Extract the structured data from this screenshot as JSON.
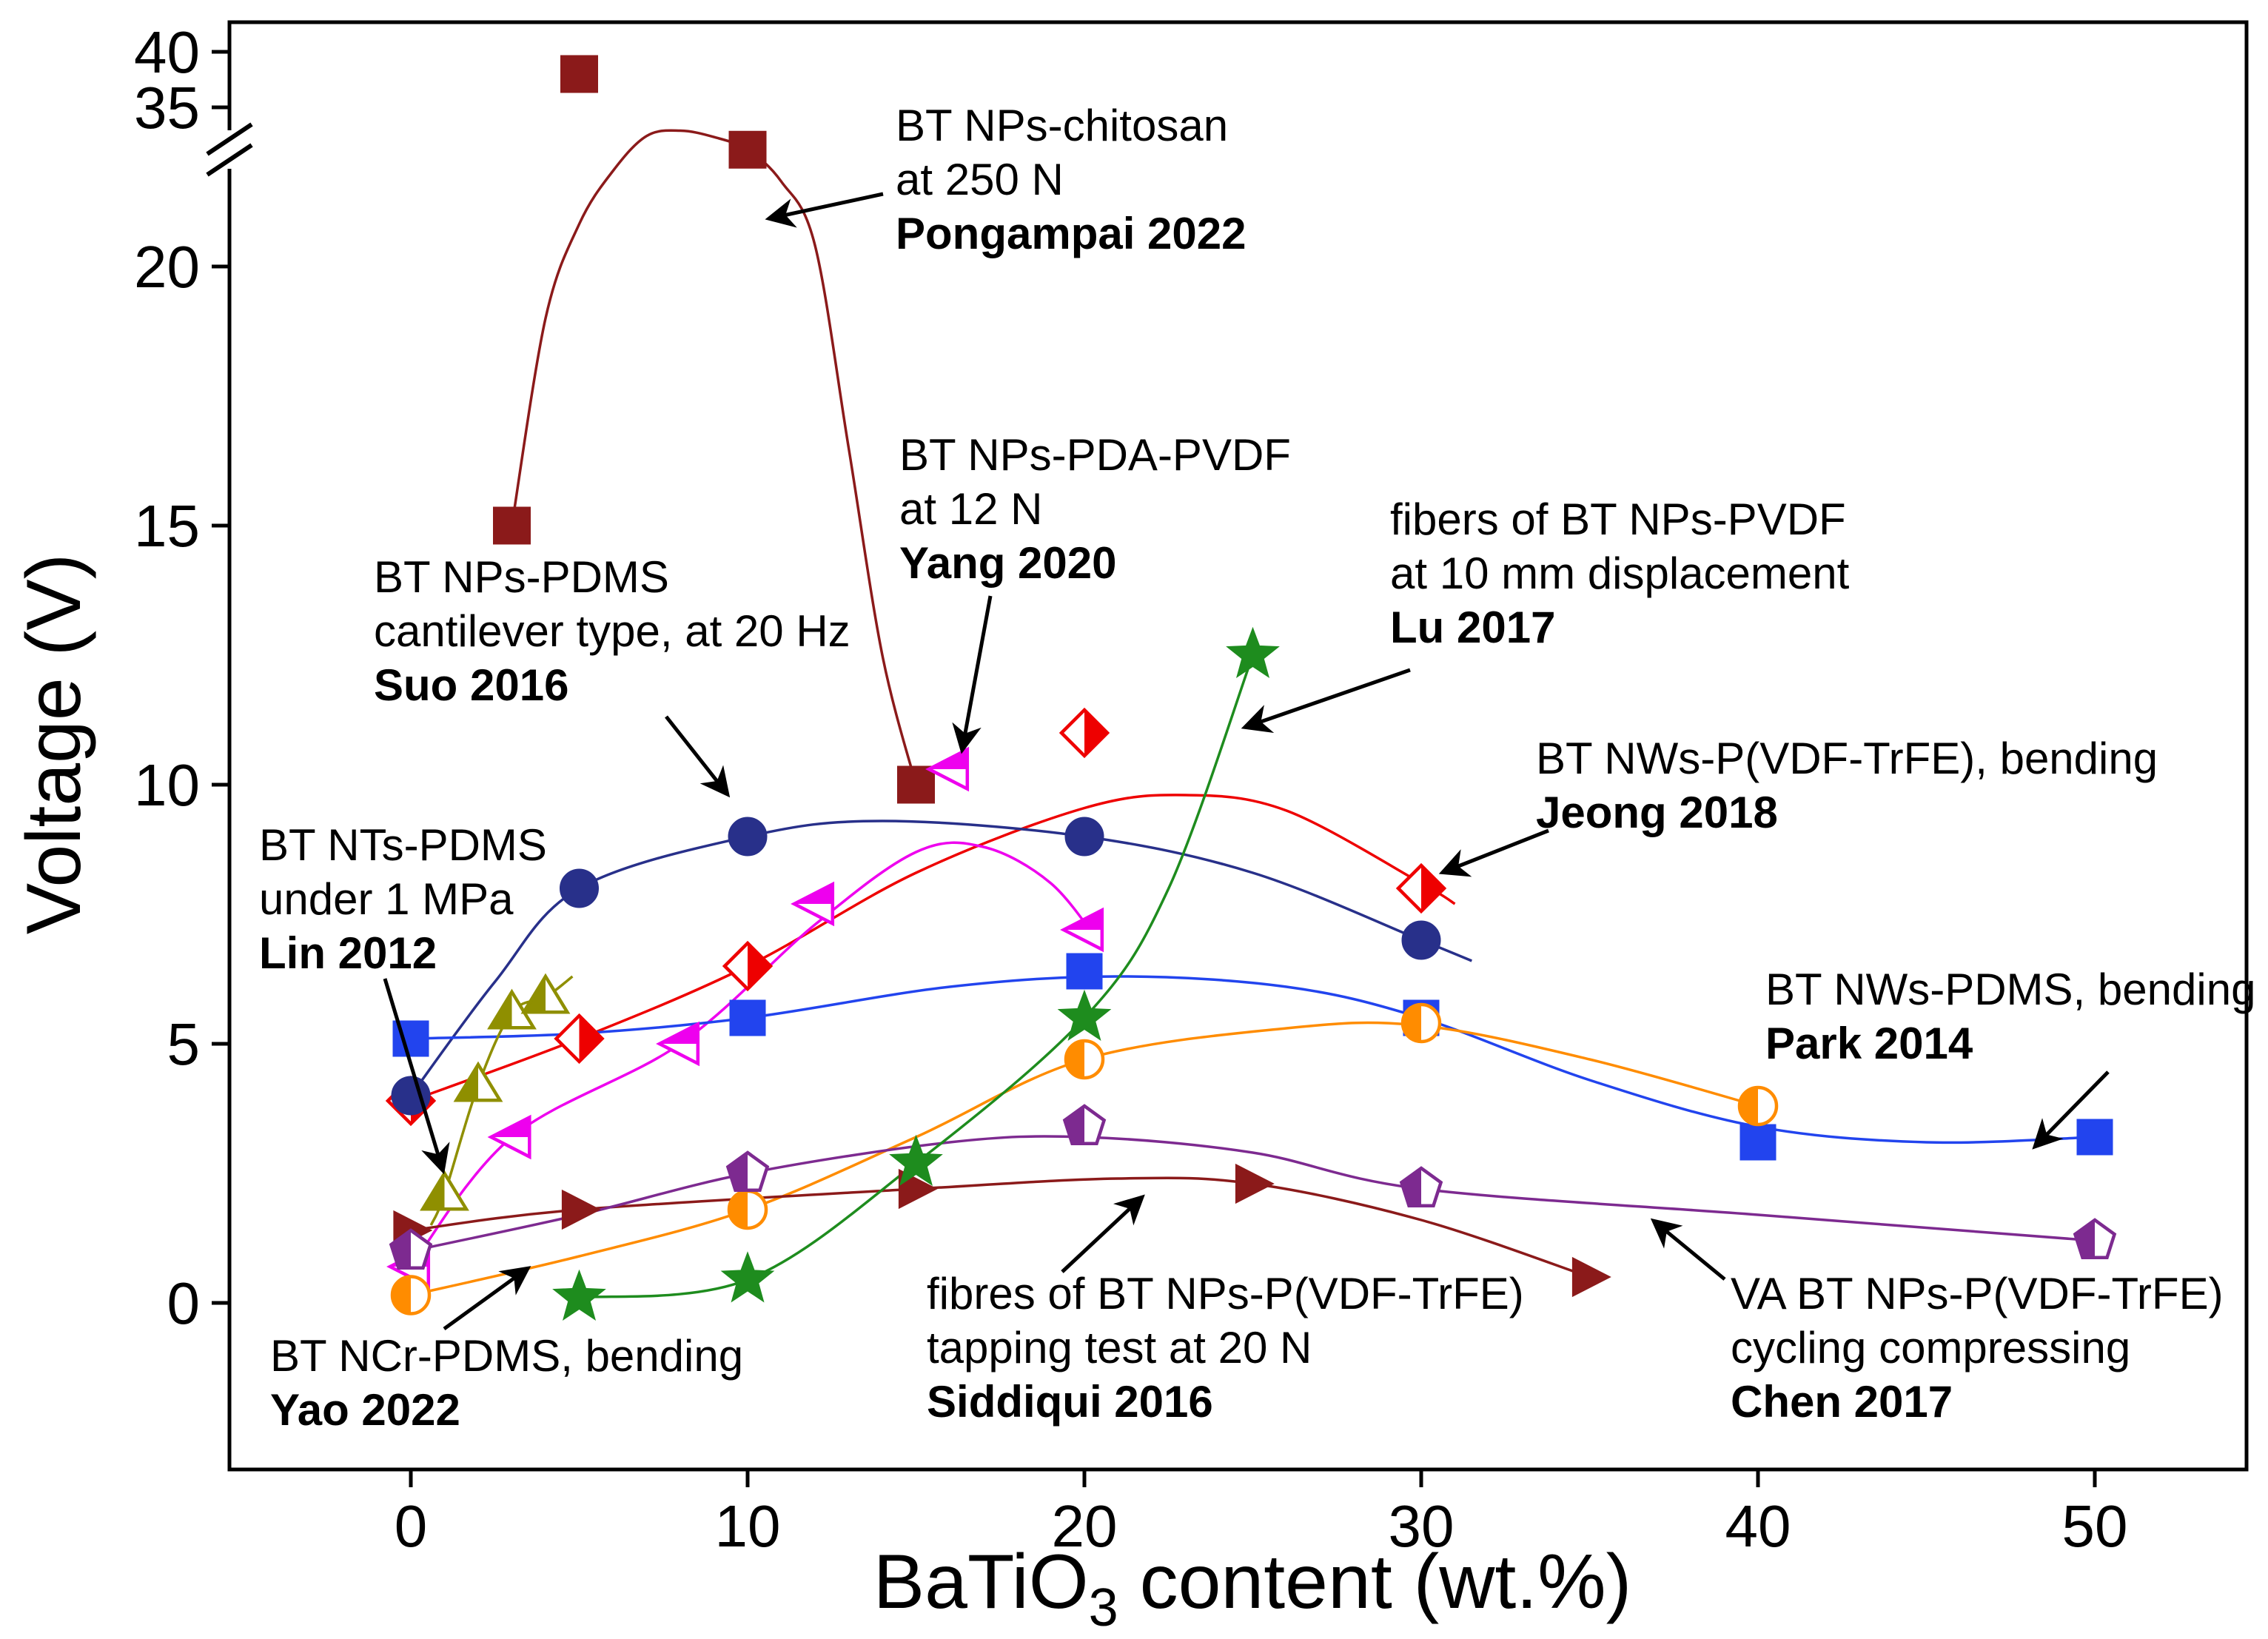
{
  "chart_data": {
    "type": "scatter",
    "title": "",
    "xlabel": {
      "pre": "BaTiO",
      "sub": "3",
      "post": " content (wt.%)"
    },
    "ylabel": "Voltage (V)",
    "x_axis": {
      "ticks": [
        0,
        10,
        20,
        30,
        40,
        50
      ],
      "min": -5.4,
      "max": 54.6
    },
    "y_axis": {
      "ticks": [
        0,
        5,
        10,
        15,
        20,
        35,
        40
      ],
      "break_between": [
        20,
        35
      ],
      "min": -3.2,
      "max": 41.5
    },
    "grid": false,
    "legend": "annotated-labels-with-arrows",
    "series": [
      {
        "name": "Pongampai 2022",
        "label": "BT NPs-chitosan at 250 N",
        "color": "#8B1A1A",
        "marker": "square",
        "fill": "full",
        "size": 24,
        "points": [
          [
            3,
            15
          ],
          [
            5,
            38
          ],
          [
            10,
            31
          ],
          [
            15,
            10
          ]
        ],
        "curve": [
          [
            3,
            15
          ],
          [
            4,
            19
          ],
          [
            5,
            24
          ],
          [
            6,
            29
          ],
          [
            7,
            32.3
          ],
          [
            8,
            32.8
          ],
          [
            9,
            32.2
          ],
          [
            10,
            31
          ],
          [
            11,
            28
          ],
          [
            12,
            22
          ],
          [
            13,
            16.5
          ],
          [
            14,
            12.5
          ],
          [
            15,
            10
          ]
        ]
      },
      {
        "name": "Jeong 2018",
        "label": "BT NWs-P(VDF-TrFE), bending",
        "color": "#EE0000",
        "marker": "diamond",
        "fill": "R",
        "size": 31,
        "points": [
          [
            0,
            3.9
          ],
          [
            5,
            5.1
          ],
          [
            10,
            6.5
          ],
          [
            20,
            11
          ],
          [
            30,
            8
          ]
        ],
        "curve": [
          [
            0,
            3.9
          ],
          [
            5,
            5.1
          ],
          [
            10,
            6.5
          ],
          [
            15,
            8.3
          ],
          [
            20,
            9.55
          ],
          [
            23,
            9.8
          ],
          [
            26,
            9.5
          ],
          [
            30,
            8.1
          ],
          [
            31,
            7.7
          ]
        ]
      },
      {
        "name": "Suo 2016",
        "label": "BT NPs-PDMS cantilever type, at 20 Hz",
        "color": "#28308A",
        "marker": "circle",
        "fill": "full",
        "size": 25,
        "points": [
          [
            0,
            4
          ],
          [
            5,
            8
          ],
          [
            10,
            9
          ],
          [
            20,
            9
          ],
          [
            30,
            7
          ]
        ],
        "curve": [
          [
            0,
            4
          ],
          [
            2.5,
            6.2
          ],
          [
            5,
            8
          ],
          [
            10,
            9
          ],
          [
            14,
            9.3
          ],
          [
            20,
            9
          ],
          [
            25,
            8.3
          ],
          [
            30,
            7
          ],
          [
            31.5,
            6.6
          ]
        ]
      },
      {
        "name": "Yang 2020",
        "label": "BT NPs-PDA-PVDF at 12 N",
        "color": "#EE00EE",
        "marker": "triangle-left",
        "fill": "T",
        "size": 28,
        "points": [
          [
            0,
            0.7
          ],
          [
            3,
            3.2
          ],
          [
            8,
            5
          ],
          [
            12,
            7.7
          ],
          [
            16,
            10.3
          ],
          [
            20,
            7.2
          ]
        ],
        "curve": [
          [
            0,
            0.7
          ],
          [
            3,
            3.2
          ],
          [
            8,
            5
          ],
          [
            12,
            7.3
          ],
          [
            15,
            8.7
          ],
          [
            17,
            8.8
          ],
          [
            19,
            8.1
          ],
          [
            20.5,
            6.9
          ]
        ]
      },
      {
        "name": "Park 2014",
        "label": "BT NWs-PDMS, bending",
        "color": "#2244EE",
        "marker": "square",
        "fill": "full",
        "size": 23,
        "points": [
          [
            0,
            5.1
          ],
          [
            10,
            5.5
          ],
          [
            20,
            6.4
          ],
          [
            30,
            5.5
          ],
          [
            40,
            3.1
          ],
          [
            50,
            3.2
          ]
        ],
        "curve": [
          [
            0,
            5.1
          ],
          [
            5,
            5.2
          ],
          [
            10,
            5.5
          ],
          [
            16,
            6.1
          ],
          [
            21,
            6.3
          ],
          [
            26,
            6.1
          ],
          [
            30,
            5.5
          ],
          [
            35,
            4.3
          ],
          [
            40,
            3.4
          ],
          [
            45,
            3.1
          ],
          [
            50,
            3.2
          ]
        ]
      },
      {
        "name": "Lin 2012",
        "label": "BT NTs-PDMS under 1 MPa",
        "color": "#8F8F00",
        "marker": "triangle-up",
        "fill": "L",
        "size": 28,
        "points": [
          [
            1,
            2.1
          ],
          [
            2,
            4.2
          ],
          [
            3,
            5.6
          ],
          [
            4,
            5.9
          ]
        ],
        "curve": [
          [
            0.6,
            1.5
          ],
          [
            1,
            2.1
          ],
          [
            2,
            4.2
          ],
          [
            3,
            5.6
          ],
          [
            4,
            5.9
          ],
          [
            4.8,
            6.3
          ]
        ]
      },
      {
        "name": "Yao 2022",
        "label": "BT NCr-PDMS, bending",
        "color": "#FF8C00",
        "marker": "circle",
        "fill": "L",
        "size": 25,
        "points": [
          [
            0,
            0.15
          ],
          [
            10,
            1.8
          ],
          [
            20,
            4.7
          ],
          [
            30,
            5.4
          ],
          [
            40,
            3.8
          ]
        ],
        "curve": [
          [
            0,
            0.15
          ],
          [
            5,
            0.9
          ],
          [
            10,
            1.8
          ],
          [
            15,
            3.2
          ],
          [
            20,
            4.7
          ],
          [
            26,
            5.3
          ],
          [
            30,
            5.35
          ],
          [
            35,
            4.7
          ],
          [
            40,
            3.8
          ]
        ]
      },
      {
        "name": "Siddiqui 2016",
        "label": "fibres of BT NPs-P(VDF-TrFE) tapping test at 20 N",
        "color": "#8B1A1A",
        "marker": "triangle-right",
        "fill": "full",
        "size": 26,
        "points": [
          [
            0,
            1.4
          ],
          [
            5,
            1.8
          ],
          [
            15,
            2.2
          ],
          [
            25,
            2.3
          ],
          [
            35,
            0.5
          ]
        ],
        "curve": [
          [
            0,
            1.4
          ],
          [
            5,
            1.8
          ],
          [
            15,
            2.2
          ],
          [
            21,
            2.4
          ],
          [
            25,
            2.3
          ],
          [
            30,
            1.6
          ],
          [
            35,
            0.5
          ]
        ]
      },
      {
        "name": "Chen 2017",
        "label": "VA BT NPs-P(VDF-TrFE) cycling compressing",
        "color": "#7D2A90",
        "marker": "pentagon",
        "fill": "L",
        "size": 28,
        "points": [
          [
            0,
            1.0
          ],
          [
            10,
            2.5
          ],
          [
            20,
            3.4
          ],
          [
            30,
            2.2
          ],
          [
            50,
            1.2
          ]
        ],
        "curve": [
          [
            0,
            1.0
          ],
          [
            5,
            1.7
          ],
          [
            10,
            2.5
          ],
          [
            16,
            3.1
          ],
          [
            20,
            3.2
          ],
          [
            25,
            2.9
          ],
          [
            30,
            2.2
          ],
          [
            40,
            1.7
          ],
          [
            50,
            1.2
          ]
        ]
      },
      {
        "name": "Lu 2017",
        "label": "fibers of BT NPs-PVDF at 10 mm displacement",
        "color": "#1E8C1E",
        "marker": "star",
        "fill": "full",
        "size": 34,
        "points": [
          [
            5,
            0.1
          ],
          [
            10,
            0.45
          ],
          [
            15,
            2.7
          ],
          [
            20,
            5.5
          ],
          [
            25,
            12.5
          ]
        ],
        "curve": [
          [
            5,
            0.1
          ],
          [
            10,
            0.45
          ],
          [
            15,
            2.7
          ],
          [
            20,
            5.5
          ],
          [
            22.5,
            8
          ],
          [
            25,
            12.5
          ]
        ]
      }
    ],
    "annotations": [
      {
        "lines": [
          "BT NPs-chitosan",
          "at 250 N"
        ],
        "credit": "Pongampai 2022",
        "color": "#8B1A1A",
        "x": 1210,
        "y": 190,
        "arrow": [
          1193,
          262,
          1040,
          295
        ]
      },
      {
        "lines": [
          "BT NPs-PDMS",
          "cantilever type, at 20 Hz"
        ],
        "credit": "Suo 2016",
        "color": "#28308A",
        "x": 505,
        "y": 800,
        "arrow": [
          900,
          968,
          982,
          1072
        ]
      },
      {
        "lines": [
          "BT NPs-PDA-PVDF",
          "at 12 N"
        ],
        "credit": "Yang 2020",
        "color": "#EE00EE",
        "x": 1215,
        "y": 635,
        "arrow": [
          1338,
          805,
          1300,
          1012
        ]
      },
      {
        "lines": [
          "fibers of BT NPs-PVDF",
          "at 10 mm displacement"
        ],
        "credit": "Lu 2017",
        "color": "#1E8C1E",
        "x": 1878,
        "y": 722,
        "arrow": [
          1905,
          905,
          1683,
          982
        ]
      },
      {
        "lines": [
          "BT NWs-P(VDF-TrFE), bending"
        ],
        "credit": "Jeong 2018",
        "color": "#EE0000",
        "x": 2075,
        "y": 1045,
        "arrow": [
          2092,
          1122,
          1950,
          1178
        ]
      },
      {
        "lines": [
          "BT NWs-PDMS, bending"
        ],
        "credit": "Park 2014",
        "color": "#2244EE",
        "x": 2385,
        "y": 1357,
        "arrow": [
          2848,
          1448,
          2750,
          1548
        ]
      },
      {
        "lines": [
          "BT NTs-PDMS",
          "under 1 MPa"
        ],
        "credit": "Lin 2012",
        "color": "#8F8F00",
        "x": 350,
        "y": 1162,
        "arrow": [
          520,
          1322,
          598,
          1580
        ]
      },
      {
        "lines": [
          "BT NCr-PDMS, bending"
        ],
        "credit": "Yao 2022",
        "color": "#FF8C00",
        "x": 365,
        "y": 1852,
        "arrow": [
          600,
          1795,
          712,
          1714
        ]
      },
      {
        "lines": [
          "fibres of BT NPs-P(VDF-TrFE)",
          "tapping test at 20 N"
        ],
        "credit": "Siddiqui 2016",
        "color": "#8B1A1A",
        "x": 1252,
        "y": 1768,
        "arrow": [
          1435,
          1718,
          1542,
          1618
        ]
      },
      {
        "lines": [
          "VA BT NPs-P(VDF-TrFE)",
          "cycling compressing"
        ],
        "credit": "Chen 2017",
        "color": "#7D2A90",
        "x": 2338,
        "y": 1768,
        "arrow": [
          2330,
          1728,
          2235,
          1650
        ]
      }
    ]
  }
}
